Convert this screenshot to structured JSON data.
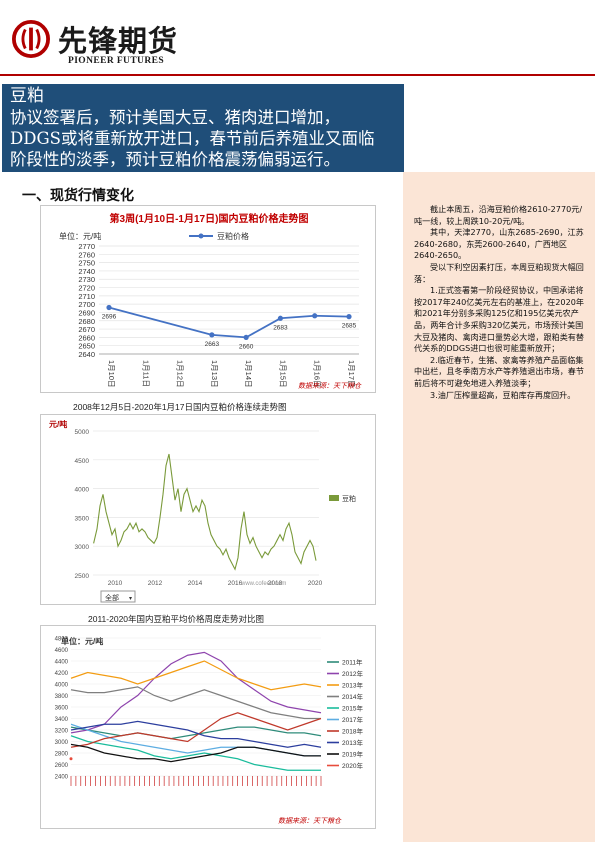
{
  "header": {
    "brand_cn": "先锋期货",
    "brand_en": "PIONEER FUTURES"
  },
  "summary": {
    "title": "豆粕",
    "lines": [
      "协议签署后，预计美国大豆、猪肉进口增加，",
      "DDGS或将重新放开进口，春节前后养殖业又面临",
      "阶段性的淡季，预计豆粕价格震荡偏弱运行。"
    ]
  },
  "section_heading": "一、现货行情变化",
  "right_text": [
    "截止本周五，沿海豆粕价格2610-2770元/吨一线，较上周跌10-20元/吨。",
    "其中，天津2770，山东2685-2690，江苏2640-2680，东莞2600-2640，广西地区2640-2650。",
    "受以下利空因素打压，本周豆粕现货大幅回落：",
    "1.正式签署第一阶段经贸协议，中国承诺将按2017年240亿美元左右的基准上，在2020年和2021年分别多采购125亿和195亿美元农产品，两年合计多采购320亿美元，市场预计美国大豆及猪肉、禽肉进口量势必大增，跟粕类有替代关系的DDGS进口也很可能重新放开；",
    "2.临近春节，生猪、家禽等养殖产品面临集中出栏，且冬季南方水产等养殖退出市场，春节前后将不可避免地进入养殖淡季；",
    "3.油厂压榨量超高，豆粕库存再度回升。"
  ],
  "captions": {
    "chart2": "2008年12月5日-2020年1月17日国内豆粕价格连续走势图",
    "chart3": "2011-2020年国内豆粕平均价格周度走势对比图"
  },
  "colors": {
    "brand_red": "#b00000",
    "summary_bg": "#1f4e79",
    "sidebar_bg": "#fbe5d6",
    "chart1_line": "#4472c4",
    "chart2_line": "#7a9a3a"
  },
  "chart_data": [
    {
      "type": "line",
      "title": "第3周(1月10日-1月17日)国内豆粕价格走势图",
      "unit_label": "单位：元/吨",
      "legend": "豆粕价格",
      "legend_position": "top-right",
      "categories": [
        "1月10日",
        "1月11日",
        "1月12日",
        "1月13日",
        "1月14日",
        "1月15日",
        "1月16日",
        "1月17日"
      ],
      "values": [
        2696,
        null,
        null,
        2663,
        2660,
        2683,
        2686,
        2685
      ],
      "point_labels": [
        "2696",
        "",
        "",
        "2663",
        "2660",
        "2683",
        "",
        "2685"
      ],
      "ylim": [
        2640,
        2770
      ],
      "yticks": [
        2640,
        2650,
        2660,
        2670,
        2680,
        2690,
        2700,
        2710,
        2720,
        2730,
        2740,
        2750,
        2760,
        2770
      ],
      "source": "数据来源：天下粮仓",
      "grid": true
    },
    {
      "type": "line",
      "unit_label": "元/吨",
      "legend": "豆粕",
      "legend_position": "right",
      "ylim": [
        2500,
        5000
      ],
      "yticks": [
        2500,
        3000,
        3500,
        4000,
        4500,
        5000
      ],
      "xticks": [
        "2010",
        "2012",
        "2014",
        "2016",
        "2018",
        "2020"
      ],
      "selector": "全部",
      "watermark_url": "www.cofeed.com",
      "x": [
        2008.93,
        2009.1,
        2009.25,
        2009.4,
        2009.55,
        2009.7,
        2009.85,
        2010.0,
        2010.15,
        2010.3,
        2010.45,
        2010.6,
        2010.75,
        2010.9,
        2011.05,
        2011.2,
        2011.35,
        2011.5,
        2011.65,
        2011.8,
        2011.95,
        2012.1,
        2012.25,
        2012.4,
        2012.55,
        2012.7,
        2012.85,
        2013.0,
        2013.15,
        2013.3,
        2013.45,
        2013.6,
        2013.75,
        2013.9,
        2014.05,
        2014.2,
        2014.35,
        2014.5,
        2014.65,
        2014.8,
        2014.95,
        2015.1,
        2015.25,
        2015.4,
        2015.55,
        2015.7,
        2015.85,
        2016.0,
        2016.15,
        2016.3,
        2016.45,
        2016.6,
        2016.75,
        2016.9,
        2017.05,
        2017.2,
        2017.35,
        2017.5,
        2017.65,
        2017.8,
        2017.95,
        2018.1,
        2018.25,
        2018.4,
        2018.55,
        2018.7,
        2018.85,
        2019.0,
        2019.15,
        2019.3,
        2019.45,
        2019.6,
        2019.75,
        2019.9,
        2020.05
      ],
      "values": [
        3050,
        3300,
        3700,
        3900,
        3600,
        3400,
        3200,
        3300,
        3000,
        3100,
        3250,
        3300,
        3400,
        3300,
        3400,
        3250,
        3300,
        3250,
        3150,
        3100,
        3050,
        3150,
        3500,
        3900,
        4400,
        4600,
        4200,
        3800,
        4000,
        3600,
        3900,
        4000,
        3800,
        3600,
        3700,
        3600,
        3800,
        3700,
        3400,
        3200,
        3100,
        3000,
        2950,
        2850,
        2950,
        2800,
        2700,
        2600,
        2800,
        3300,
        3600,
        3200,
        3050,
        3150,
        3000,
        2900,
        2800,
        2900,
        2850,
        2950,
        3000,
        3100,
        3200,
        3100,
        3300,
        3400,
        3200,
        2900,
        2800,
        2700,
        2900,
        3000,
        3100,
        3000,
        2750
      ]
    },
    {
      "type": "line",
      "unit_label": "单位：元/吨",
      "ylim": [
        2400,
        4800
      ],
      "yticks": [
        2400,
        2600,
        2800,
        3000,
        3200,
        3400,
        3600,
        3800,
        4000,
        4200,
        4400,
        4600,
        4800
      ],
      "source": "数据来源：天下粮仓",
      "legend_position": "right",
      "series": [
        {
          "name": "2011年",
          "color": "#2e8b7a",
          "values": [
            3250,
            3200,
            3150,
            3100,
            3150,
            3100,
            3050,
            3100,
            3150,
            3200,
            3250,
            3250,
            3200,
            3150,
            3150,
            3100
          ]
        },
        {
          "name": "2012年",
          "color": "#8e44ad",
          "values": [
            3150,
            3200,
            3300,
            3600,
            3800,
            4100,
            4350,
            4500,
            4550,
            4400,
            4100,
            3900,
            3700,
            3600,
            3550,
            3500
          ]
        },
        {
          "name": "2013年",
          "color": "#f39c12",
          "values": [
            4100,
            4200,
            4150,
            4100,
            4000,
            4100,
            4200,
            4300,
            4400,
            4250,
            4100,
            4000,
            3900,
            3950,
            4000,
            3950
          ]
        },
        {
          "name": "2014年",
          "color": "#7f7f7f",
          "values": [
            3900,
            3850,
            3850,
            3900,
            3950,
            3800,
            3700,
            3800,
            3900,
            3800,
            3700,
            3600,
            3500,
            3450,
            3400,
            3400
          ]
        },
        {
          "name": "2015年",
          "color": "#1abc9c",
          "values": [
            3100,
            3000,
            2950,
            2900,
            2850,
            2750,
            2700,
            2750,
            2800,
            2750,
            2700,
            2600,
            2550,
            2500,
            2500,
            2500
          ]
        },
        {
          "name": "2017年",
          "color": "#5dade2",
          "values": [
            3300,
            3200,
            3100,
            3000,
            2950,
            2900,
            2850,
            2800,
            2850,
            2900,
            2900,
            2900,
            2850,
            2800,
            2750,
            2750
          ]
        },
        {
          "name": "2018年",
          "color": "#c0392b",
          "values": [
            2900,
            2950,
            3050,
            3100,
            3150,
            3100,
            3050,
            3000,
            3200,
            3400,
            3500,
            3400,
            3300,
            3200,
            3300,
            3400
          ]
        },
        {
          "name": "2013年",
          "color": "#2c3e9e",
          "values": [
            3200,
            3250,
            3300,
            3300,
            3350,
            3300,
            3250,
            3200,
            3100,
            3050,
            3050,
            3000,
            2950,
            2900,
            2950,
            2900
          ]
        },
        {
          "name": "2019年",
          "color": "#111111",
          "values": [
            2950,
            2900,
            2800,
            2750,
            2700,
            2700,
            2650,
            2700,
            2750,
            2800,
            2900,
            2900,
            2850,
            2800,
            2750,
            2750
          ]
        },
        {
          "name": "2020年",
          "color": "#e74c3c",
          "values": [
            2700,
            null,
            null,
            null,
            null,
            null,
            null,
            null,
            null,
            null,
            null,
            null,
            null,
            null,
            null,
            null
          ]
        }
      ],
      "x_tick_count": 52
    }
  ]
}
